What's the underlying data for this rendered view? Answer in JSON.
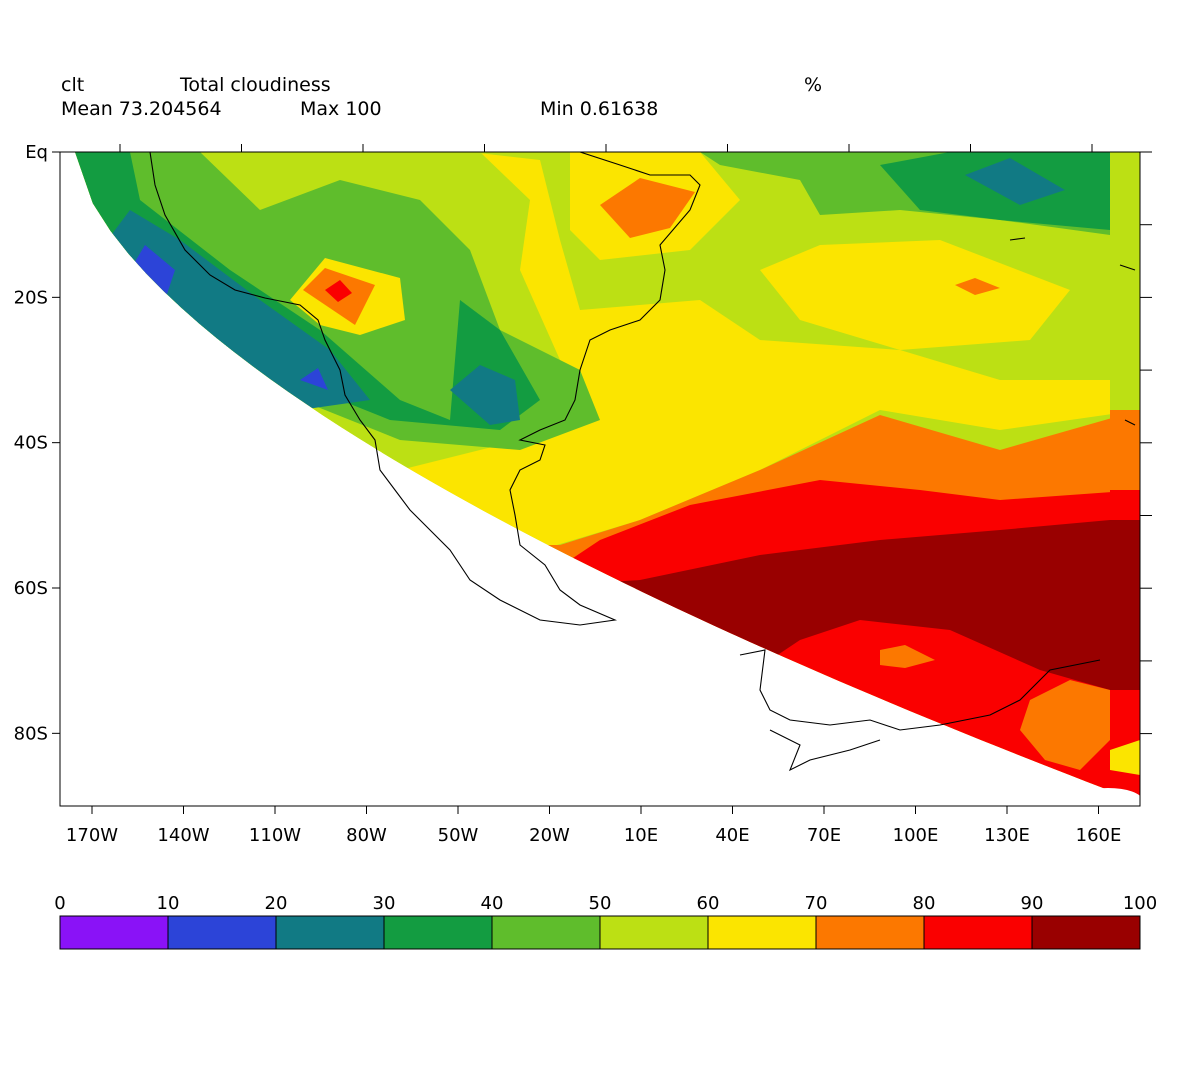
{
  "header": {
    "variable": "clt",
    "long_name": "Total cloudiness",
    "units": "%",
    "mean": "Mean 73.204564",
    "max": "Max 100",
    "min": "Min 0.61638"
  },
  "axes": {
    "lon_ticks": [
      "170W",
      "140W",
      "110W",
      "80W",
      "50W",
      "20W",
      "10E",
      "40E",
      "70E",
      "100E",
      "130E",
      "160E"
    ],
    "lon_values": [
      -170,
      -140,
      -110,
      -80,
      -50,
      -20,
      10,
      40,
      70,
      100,
      130,
      160
    ],
    "lat_ticks": [
      "Eq",
      "20S",
      "40S",
      "60S",
      "80S"
    ],
    "lat_values": [
      0,
      -20,
      -40,
      -60,
      -80
    ],
    "lon_range": [
      -180,
      180
    ],
    "lat_range": [
      -90,
      0
    ]
  },
  "colorbar": {
    "labels": [
      "0",
      "10",
      "20",
      "30",
      "40",
      "50",
      "60",
      "70",
      "80",
      "90",
      "100"
    ],
    "colors": [
      "#8a12f7",
      "#2c44d8",
      "#117a84",
      "#139c41",
      "#5fbd2c",
      "#bce014",
      "#fbe500",
      "#fc7800",
      "#fa0000",
      "#990000"
    ]
  }
}
